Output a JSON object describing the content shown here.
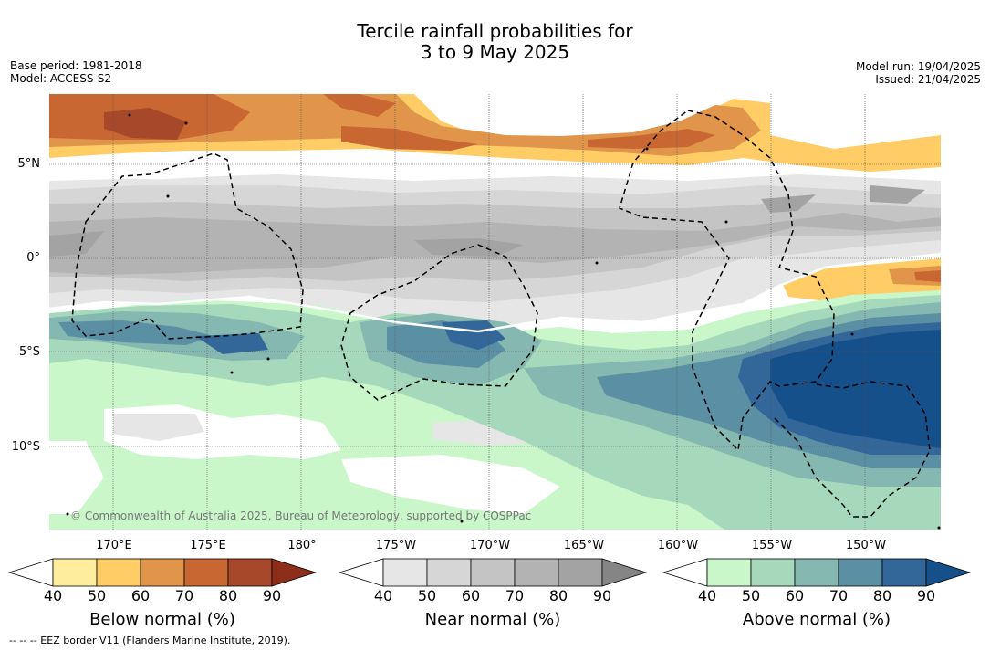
{
  "title": {
    "line1": "Tercile rainfall probabilities for",
    "line2": "3 to 9 May 2025"
  },
  "meta_left": {
    "base_period": "Base period: 1981-2018",
    "model": "Model: ACCESS-S2"
  },
  "meta_right": {
    "model_run": "Model run: 19/04/2025",
    "issued": "Issued: 21/04/2025"
  },
  "map": {
    "lat_labels": [
      "5°N",
      "0°",
      "5°S",
      "10°S"
    ],
    "lon_labels": [
      "170°E",
      "175°E",
      "180°",
      "175°W",
      "170°W",
      "165°W",
      "160°W",
      "155°W",
      "150°W"
    ],
    "copyright": "© Commonwealth of Australia 2025, Bureau of Meteorology, supported by COSPPac"
  },
  "colorbars": [
    {
      "title": "Below normal (%)",
      "ticks": [
        "40",
        "50",
        "60",
        "70",
        "80",
        "90"
      ],
      "colors": [
        "#ffffff",
        "#ffed9e",
        "#ffcc66",
        "#e0954a",
        "#c96733",
        "#a8482a",
        "#8c2e1a"
      ]
    },
    {
      "title": "Near normal (%)",
      "ticks": [
        "40",
        "50",
        "60",
        "70",
        "80",
        "90"
      ],
      "colors": [
        "#ffffff",
        "#e6e6e6",
        "#d6d6d6",
        "#c4c4c4",
        "#b3b3b3",
        "#a3a3a3",
        "#858585"
      ]
    },
    {
      "title": "Above normal (%)",
      "ticks": [
        "40",
        "50",
        "60",
        "70",
        "80",
        "90"
      ],
      "colors": [
        "#ffffff",
        "#c9f7c9",
        "#a6d9bb",
        "#84b8b0",
        "#5b8fa3",
        "#336699",
        "#16508a"
      ]
    }
  ],
  "footer": "--  --  -- EEZ border V11 (Flanders Marine Institute, 2019)."
}
